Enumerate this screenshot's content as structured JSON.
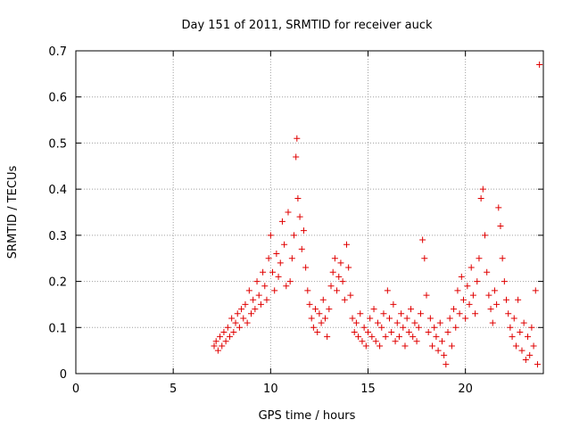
{
  "chart_data": {
    "type": "scatter",
    "title": "Day 151 of 2011, SRMTID for receiver auck",
    "xlabel": "GPS time / hours",
    "ylabel": "SRMTID / TECUs",
    "xlim": [
      0,
      24
    ],
    "ylim": [
      0,
      0.7
    ],
    "xticks": [
      0,
      5,
      10,
      15,
      20
    ],
    "yticks": [
      0,
      0.1,
      0.2,
      0.3,
      0.4,
      0.5,
      0.6,
      0.7
    ],
    "xtick_labels": [
      "0",
      "5",
      "10",
      "15",
      "20"
    ],
    "ytick_labels": [
      "0",
      "0.1",
      "0.2",
      "0.3",
      "0.4",
      "0.5",
      "0.6",
      "0.7"
    ],
    "grid": true,
    "marker": "+",
    "color": "#e00000",
    "series": [
      {
        "name": "SRMTID",
        "x": [
          7.1,
          7.2,
          7.3,
          7.4,
          7.5,
          7.6,
          7.7,
          7.8,
          7.9,
          8.0,
          8.1,
          8.2,
          8.3,
          8.4,
          8.5,
          8.6,
          8.7,
          8.8,
          8.9,
          9.0,
          9.1,
          9.2,
          9.3,
          9.4,
          9.5,
          9.6,
          9.7,
          9.8,
          9.9,
          10.0,
          10.1,
          10.2,
          10.3,
          10.4,
          10.5,
          10.6,
          10.7,
          10.8,
          10.9,
          11.0,
          11.1,
          11.2,
          11.3,
          11.35,
          11.4,
          11.5,
          11.6,
          11.7,
          11.8,
          11.9,
          12.0,
          12.1,
          12.2,
          12.3,
          12.4,
          12.5,
          12.6,
          12.7,
          12.8,
          12.9,
          13.0,
          13.1,
          13.2,
          13.3,
          13.4,
          13.5,
          13.6,
          13.7,
          13.8,
          13.9,
          14.0,
          14.1,
          14.2,
          14.3,
          14.4,
          14.5,
          14.6,
          14.7,
          14.8,
          14.9,
          15.0,
          15.1,
          15.2,
          15.3,
          15.4,
          15.5,
          15.6,
          15.7,
          15.8,
          15.9,
          16.0,
          16.1,
          16.2,
          16.3,
          16.4,
          16.5,
          16.6,
          16.7,
          16.8,
          16.9,
          17.0,
          17.1,
          17.2,
          17.3,
          17.4,
          17.5,
          17.6,
          17.7,
          17.8,
          17.9,
          18.0,
          18.1,
          18.2,
          18.3,
          18.4,
          18.5,
          18.6,
          18.7,
          18.8,
          18.9,
          19.0,
          19.1,
          19.2,
          19.3,
          19.4,
          19.5,
          19.6,
          19.7,
          19.8,
          19.9,
          20.0,
          20.1,
          20.2,
          20.3,
          20.4,
          20.5,
          20.6,
          20.7,
          20.8,
          20.9,
          21.0,
          21.1,
          21.2,
          21.3,
          21.4,
          21.5,
          21.6,
          21.7,
          21.8,
          21.9,
          22.0,
          22.1,
          22.2,
          22.3,
          22.4,
          22.5,
          22.6,
          22.7,
          22.8,
          22.9,
          23.0,
          23.1,
          23.2,
          23.3,
          23.4,
          23.5,
          23.6,
          23.7,
          23.8
        ],
        "y": [
          0.06,
          0.07,
          0.05,
          0.08,
          0.06,
          0.09,
          0.07,
          0.1,
          0.08,
          0.12,
          0.09,
          0.11,
          0.13,
          0.1,
          0.14,
          0.12,
          0.15,
          0.11,
          0.18,
          0.13,
          0.16,
          0.14,
          0.2,
          0.17,
          0.15,
          0.22,
          0.19,
          0.16,
          0.25,
          0.3,
          0.22,
          0.18,
          0.26,
          0.21,
          0.24,
          0.33,
          0.28,
          0.19,
          0.35,
          0.2,
          0.25,
          0.3,
          0.47,
          0.51,
          0.38,
          0.34,
          0.27,
          0.31,
          0.23,
          0.18,
          0.15,
          0.12,
          0.1,
          0.14,
          0.09,
          0.13,
          0.11,
          0.16,
          0.12,
          0.08,
          0.14,
          0.19,
          0.22,
          0.25,
          0.18,
          0.21,
          0.24,
          0.2,
          0.16,
          0.28,
          0.23,
          0.17,
          0.12,
          0.09,
          0.11,
          0.08,
          0.13,
          0.07,
          0.1,
          0.06,
          0.09,
          0.12,
          0.08,
          0.14,
          0.07,
          0.11,
          0.06,
          0.1,
          0.13,
          0.08,
          0.18,
          0.12,
          0.09,
          0.15,
          0.07,
          0.11,
          0.08,
          0.13,
          0.1,
          0.06,
          0.12,
          0.09,
          0.14,
          0.08,
          0.11,
          0.07,
          0.1,
          0.13,
          0.29,
          0.25,
          0.17,
          0.09,
          0.12,
          0.06,
          0.1,
          0.08,
          0.05,
          0.11,
          0.07,
          0.04,
          0.02,
          0.09,
          0.12,
          0.06,
          0.14,
          0.1,
          0.18,
          0.13,
          0.21,
          0.16,
          0.12,
          0.19,
          0.15,
          0.23,
          0.17,
          0.13,
          0.2,
          0.25,
          0.38,
          0.4,
          0.3,
          0.22,
          0.17,
          0.14,
          0.11,
          0.18,
          0.15,
          0.36,
          0.32,
          0.25,
          0.2,
          0.16,
          0.13,
          0.1,
          0.08,
          0.12,
          0.06,
          0.16,
          0.09,
          0.05,
          0.11,
          0.03,
          0.08,
          0.04,
          0.1,
          0.06,
          0.18,
          0.02,
          0.67
        ]
      }
    ]
  }
}
